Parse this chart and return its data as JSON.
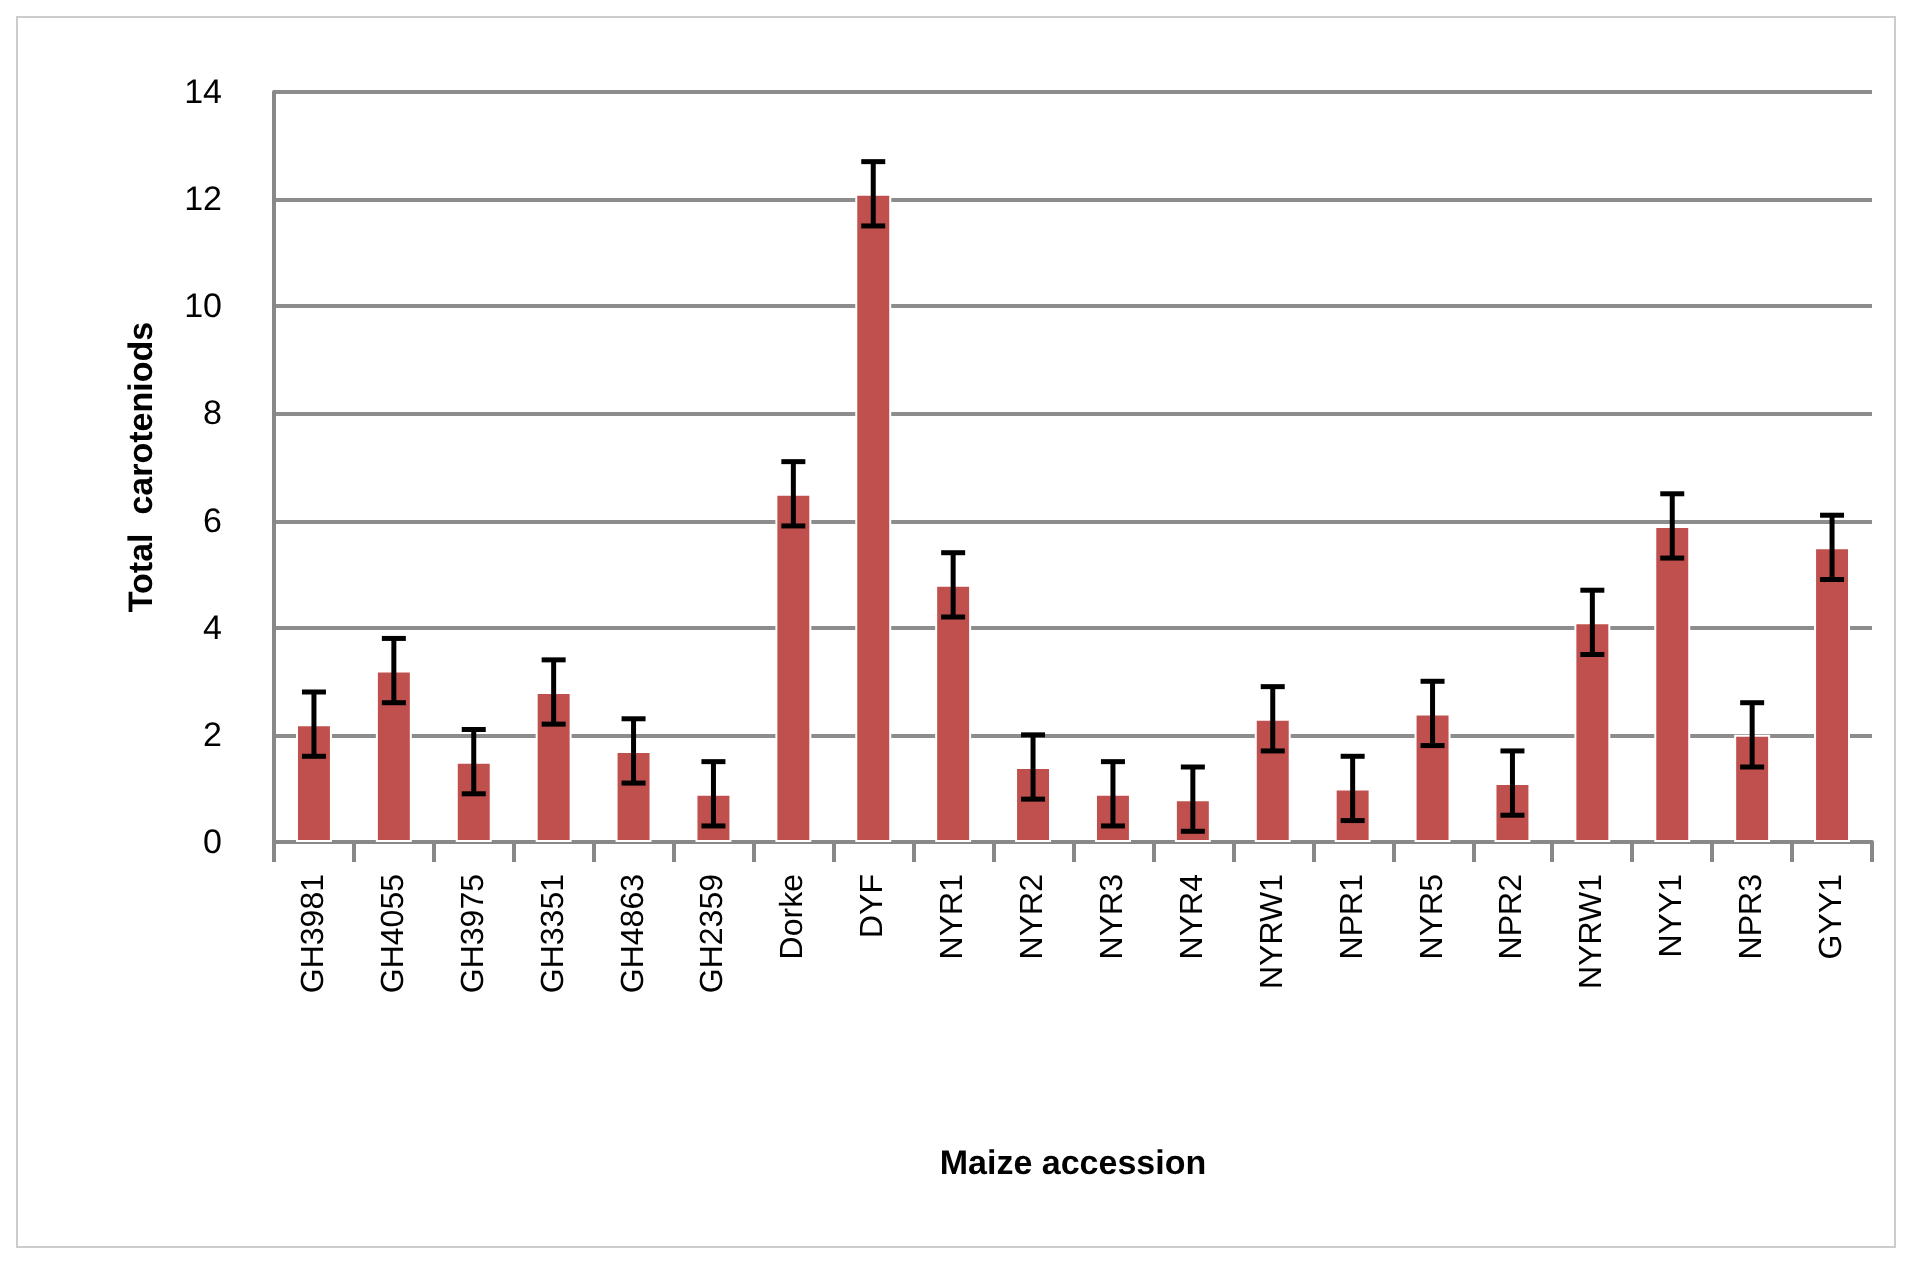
{
  "chart_data": {
    "type": "bar",
    "xlabel": "Maize accession",
    "ylabel": "Total  caroteniods",
    "categories": [
      "GH3981",
      "GH4055",
      "GH3975",
      "GH3351",
      "GH4863",
      "GH2359",
      "Dorke",
      "DYF",
      "NYR1",
      "NYR2",
      "NYR3",
      "NYR4",
      "NYRW1",
      "NPR1",
      "NYR5",
      "NPR2",
      "NYRW1",
      "NYY1",
      "NPR3",
      "GYY1"
    ],
    "values": [
      2.2,
      3.2,
      1.5,
      2.8,
      1.7,
      0.9,
      6.5,
      12.1,
      4.8,
      1.4,
      0.9,
      0.8,
      2.3,
      1.0,
      2.4,
      1.1,
      4.1,
      5.9,
      2.0,
      5.5
    ],
    "errors": [
      0.6,
      0.6,
      0.6,
      0.6,
      0.6,
      0.6,
      0.6,
      0.6,
      0.6,
      0.6,
      0.6,
      0.6,
      0.6,
      0.6,
      0.6,
      0.6,
      0.6,
      0.6,
      0.6,
      0.6
    ],
    "color": "#c0504d",
    "ylim": [
      0,
      14
    ],
    "yticks": [
      0,
      2,
      4,
      6,
      8,
      10,
      12,
      14
    ],
    "grid": "y"
  }
}
